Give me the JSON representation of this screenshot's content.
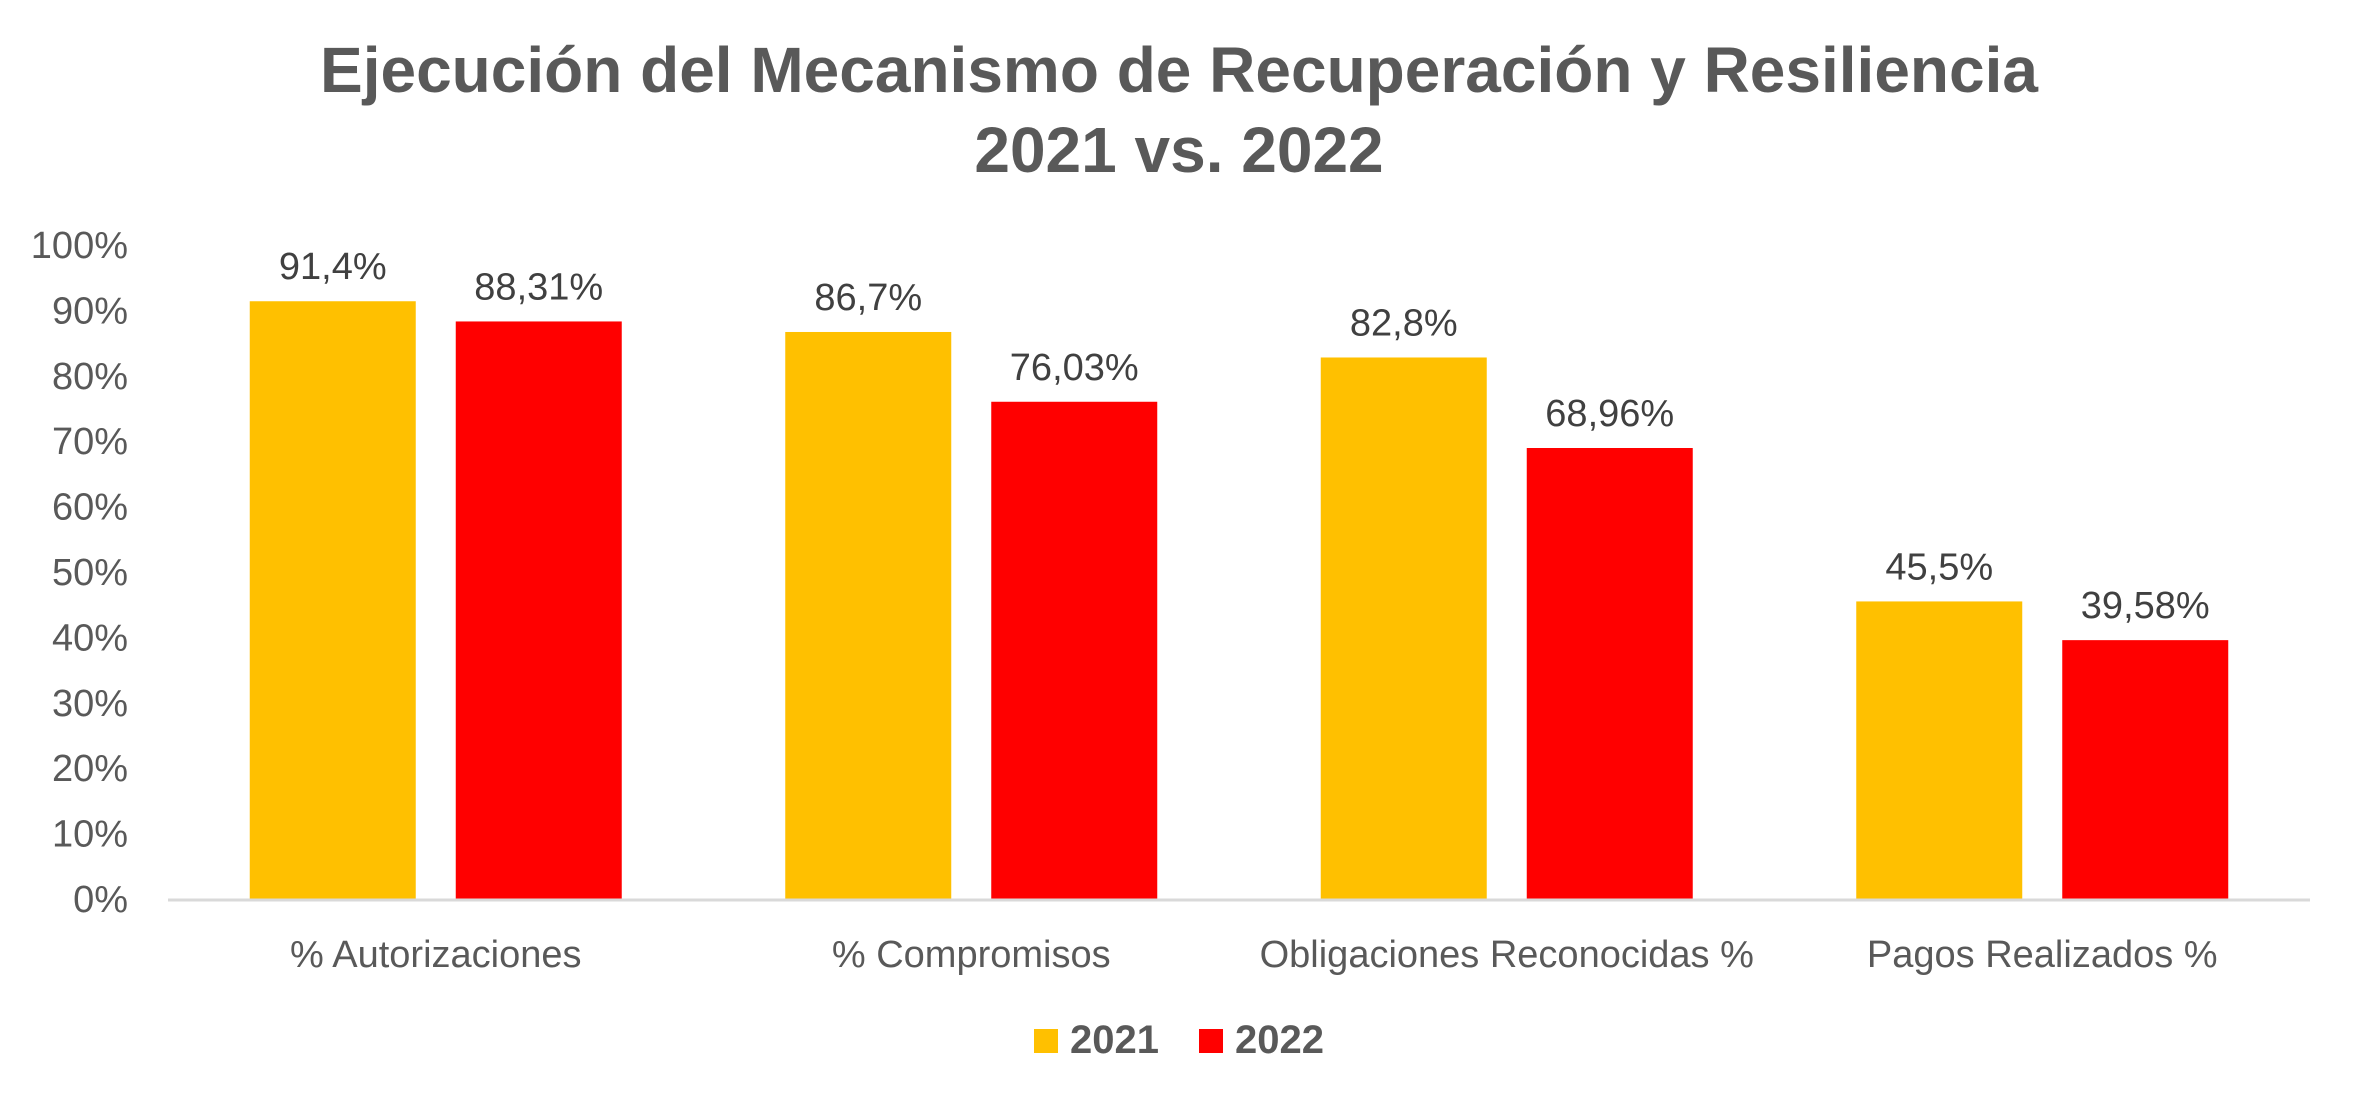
{
  "chart_data": {
    "type": "bar",
    "title": "Ejecución del Mecanismo de Recuperación y Resiliencia",
    "subtitle": "2021 vs. 2022",
    "categories": [
      "% Autorizaciones",
      "% Compromisos",
      "Obligaciones Reconocidas %",
      "Pagos Realizados %"
    ],
    "series": [
      {
        "name": "2021",
        "color": "#FFC000",
        "values": [
          91.4,
          86.7,
          82.8,
          45.5
        ],
        "labels": [
          "91,4%",
          "86,7%",
          "82,8%",
          "45,5%"
        ]
      },
      {
        "name": "2022",
        "color": "#FF0000",
        "values": [
          88.31,
          76.03,
          68.96,
          39.58
        ],
        "labels": [
          "88,31%",
          "76,03%",
          "68,96%",
          "39,58%"
        ]
      }
    ],
    "ylim": [
      0,
      100
    ],
    "yticks": [
      0,
      10,
      20,
      30,
      40,
      50,
      60,
      70,
      80,
      90,
      100
    ],
    "ytick_labels": [
      "0%",
      "10%",
      "20%",
      "30%",
      "40%",
      "50%",
      "60%",
      "70%",
      "80%",
      "90%",
      "100%"
    ],
    "xlabel": "",
    "ylabel": "",
    "grid": false,
    "legend_position": "bottom"
  }
}
